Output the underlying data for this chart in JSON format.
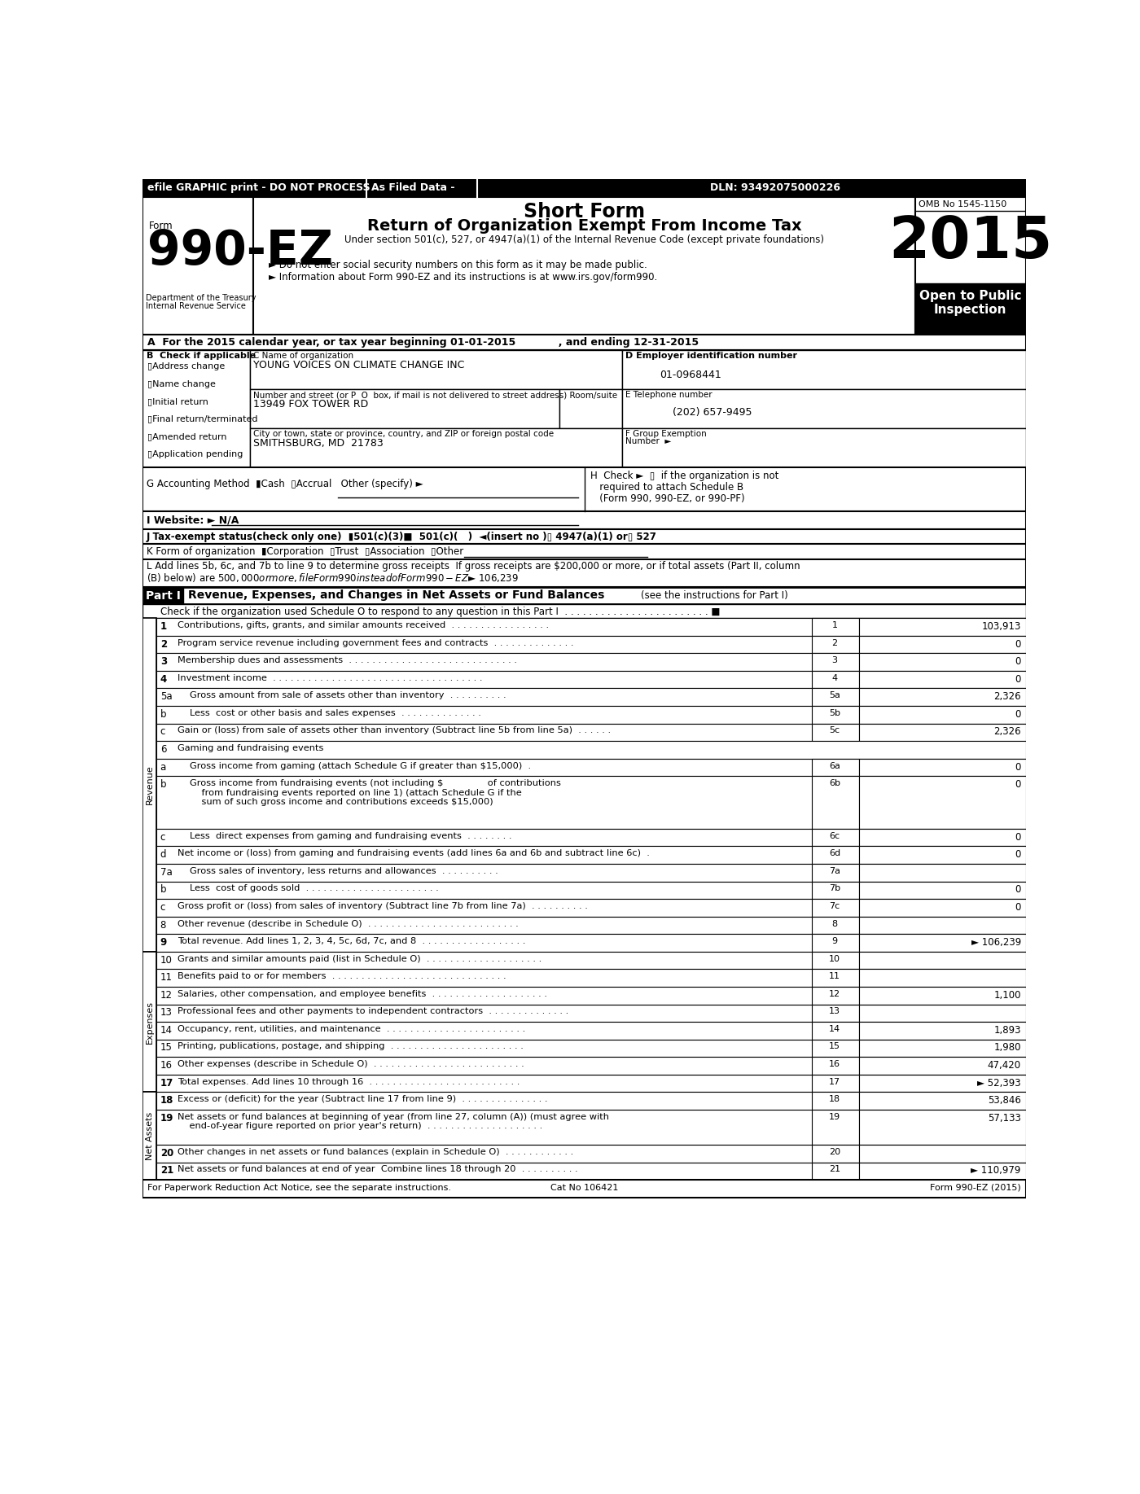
{
  "title_top": "Short Form",
  "title_main": "Return of Organization Exempt From Income Tax",
  "subtitle": "Under section 501(c), 527, or 4947(a)(1) of the Internal Revenue Code (except private foundations)",
  "form_number": "990-EZ",
  "year": "2015",
  "omb": "OMB No 1545-1150",
  "efile_text": "efile GRAPHIC print - DO NOT PROCESS",
  "as_filed": "As Filed Data -",
  "dln": "DLN: 93492075000226",
  "dept": "Department of the Treasury",
  "irs": "Internal Revenue Service",
  "bullet1": "► Do not enter social security numbers on this form as it may be made public.",
  "bullet2": "► Information about Form 990-EZ and its instructions is at www.irs.gov/form990.",
  "section_a": "A  For the 2015 calendar year, or tax year beginning 01-01-2015            , and ending 12-31-2015",
  "check_items": [
    "Address change",
    "Name change",
    "Initial return",
    "Final return/terminated",
    "Amended return",
    "Application pending"
  ],
  "org_name": "YOUNG VOICES ON CLIMATE CHANGE INC",
  "ein": "01-0968441",
  "street_label": "Number and street (or P  O  box, if mail is not delivered to street address) Room/suite",
  "street": "13949 FOX TOWER RD",
  "phone": "(202) 657-9495",
  "city": "SMITHSBURG, MD  21783",
  "footer_left": "For Paperwork Reduction Act Notice, see the separate instructions.",
  "footer_center": "Cat No 106421",
  "footer_right": "Form 990-EZ (2015)"
}
